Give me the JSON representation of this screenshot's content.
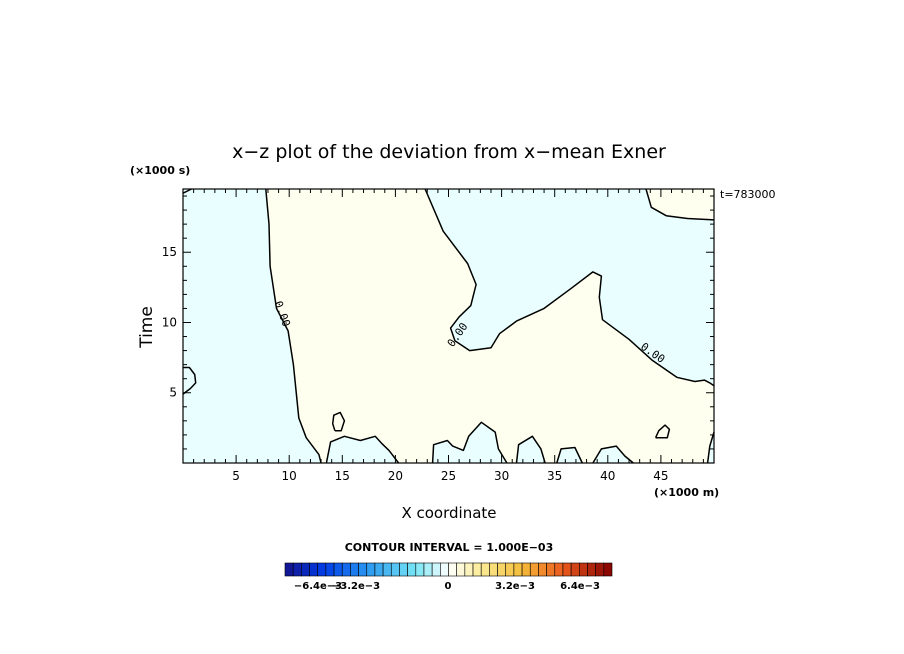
{
  "chart_data": {
    "type": "contour",
    "title": "x−z plot of the deviation from x−mean Exner",
    "xlabel": "X coordinate",
    "ylabel": "Time",
    "x_unit": "(×1000 m)",
    "y_unit": "(×1000 s)",
    "time_stamp": "t=783000",
    "xlim": [
      0,
      50
    ],
    "ylim": [
      0,
      19.5
    ],
    "x_ticks": [
      5,
      10,
      15,
      20,
      25,
      30,
      35,
      40,
      45
    ],
    "y_ticks": [
      5,
      10,
      15
    ],
    "contour_label": "0.00",
    "contour_interval_text": "CONTOUR INTERVAL = 1.000E−03",
    "colorbar": {
      "labels": [
        "−6.4e−3",
        "−3.2e−3",
        "0",
        "3.2e−3",
        "6.4e−3"
      ],
      "range": [
        -0.008,
        0.008
      ]
    },
    "colors": {
      "negative_fill": "#e9ffff",
      "positive_fill": "#fffff0"
    },
    "zero_contours": [
      [
        [
          0,
          19.2
        ],
        [
          0.8,
          19.5
        ]
      ],
      [
        [
          7.8,
          19.5
        ],
        [
          8.1,
          17
        ],
        [
          8.2,
          14
        ],
        [
          8.8,
          11
        ],
        [
          9.9,
          9.4
        ],
        [
          10.4,
          7
        ],
        [
          10.9,
          3.2
        ],
        [
          11.6,
          1.8
        ],
        [
          12.8,
          0.6
        ],
        [
          13,
          0
        ]
      ],
      [
        [
          22.8,
          19.5
        ],
        [
          24.5,
          16.5
        ],
        [
          26.8,
          14.2
        ],
        [
          27.6,
          12.7
        ],
        [
          27.1,
          11.2
        ],
        [
          26,
          10.4
        ],
        [
          25.2,
          9.6
        ],
        [
          25.6,
          8.7
        ],
        [
          27,
          8
        ],
        [
          29,
          8.2
        ],
        [
          29.8,
          9.2
        ],
        [
          31.4,
          10.1
        ],
        [
          34,
          11
        ],
        [
          36.5,
          12.4
        ],
        [
          38.6,
          13.6
        ],
        [
          39.4,
          13.3
        ],
        [
          39.2,
          11.8
        ],
        [
          39.5,
          10.2
        ],
        [
          42,
          8.8
        ],
        [
          44.2,
          7.3
        ],
        [
          46.5,
          6.1
        ],
        [
          48.2,
          5.8
        ],
        [
          49.1,
          5.9
        ],
        [
          49.6,
          5.7
        ],
        [
          50,
          5.5
        ]
      ],
      [
        [
          43.6,
          19.5
        ],
        [
          44.1,
          18.2
        ],
        [
          45.5,
          17.6
        ],
        [
          47.5,
          17.4
        ],
        [
          50,
          17.3
        ]
      ],
      [
        [
          13.5,
          0
        ],
        [
          13.9,
          1.5
        ],
        [
          15.2,
          1.9
        ],
        [
          16.7,
          1.6
        ],
        [
          18.1,
          1.9
        ],
        [
          18.7,
          1.4
        ],
        [
          19.4,
          0.9
        ],
        [
          20.3,
          0
        ]
      ],
      [
        [
          23.5,
          0
        ],
        [
          23.6,
          1.3
        ],
        [
          24.9,
          1.6
        ],
        [
          25.4,
          1.2
        ],
        [
          26.4,
          0.9
        ],
        [
          26.9,
          1.9
        ],
        [
          28.1,
          2.9
        ],
        [
          29.4,
          2.2
        ],
        [
          29.7,
          1
        ],
        [
          30.5,
          0
        ]
      ],
      [
        [
          31.4,
          0
        ],
        [
          31.6,
          1.3
        ],
        [
          32.9,
          1.9
        ],
        [
          33.7,
          1
        ],
        [
          34.1,
          0
        ]
      ],
      [
        [
          35.2,
          0
        ],
        [
          35.6,
          1
        ],
        [
          36.9,
          1.1
        ],
        [
          37.6,
          0
        ]
      ],
      [
        [
          38.6,
          0
        ],
        [
          39.4,
          1
        ],
        [
          40.8,
          1.2
        ],
        [
          41.6,
          0.5
        ],
        [
          42.4,
          0
        ]
      ],
      [
        [
          49.4,
          0
        ],
        [
          49.6,
          1.2
        ],
        [
          50,
          2.2
        ]
      ],
      [
        [
          0,
          4.9
        ],
        [
          0.7,
          5.3
        ],
        [
          1.2,
          5.7
        ],
        [
          1.1,
          6.3
        ],
        [
          0.6,
          6.8
        ],
        [
          0,
          6.8
        ]
      ],
      [
        [
          14.3,
          2.3
        ],
        [
          14.9,
          2.3
        ],
        [
          15.2,
          3
        ],
        [
          14.8,
          3.6
        ],
        [
          14.2,
          3.4
        ],
        [
          14.1,
          2.8
        ],
        [
          14.3,
          2.3
        ]
      ],
      [
        [
          44.5,
          1.8
        ],
        [
          45.6,
          1.8
        ],
        [
          45.8,
          2.4
        ],
        [
          45.4,
          2.7
        ],
        [
          44.8,
          2.3
        ],
        [
          44.5,
          1.8
        ]
      ]
    ],
    "contour_label_positions": [
      {
        "x": 9.3,
        "y": 10.6
      },
      {
        "x": 25.9,
        "y": 9.1
      },
      {
        "x": 44.2,
        "y": 7.8
      }
    ]
  }
}
